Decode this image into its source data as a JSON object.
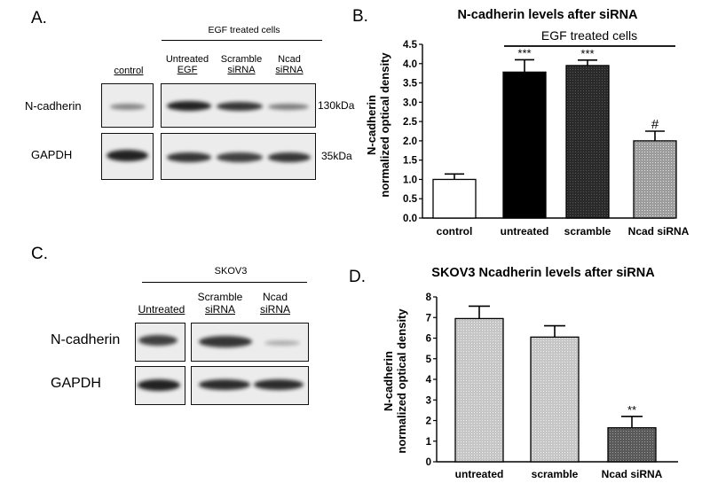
{
  "panelA": {
    "letter": "A.",
    "treatment_header": "EGF  treated cells",
    "lanes": [
      {
        "line1": "",
        "line2": "control"
      },
      {
        "line1": "Untreated",
        "line2": "EGF"
      },
      {
        "line1": "Scramble",
        "line2": "siRNA"
      },
      {
        "line1": "Ncad",
        "line2": "siRNA"
      }
    ],
    "rows": [
      {
        "label": "N-cadherin",
        "size": "130kDa",
        "band_intensity": [
          0.45,
          1.0,
          0.85,
          0.5
        ]
      },
      {
        "label": "GAPDH",
        "size": "35kDa",
        "band_intensity": [
          1.0,
          0.9,
          0.85,
          0.95
        ]
      }
    ]
  },
  "panelC": {
    "letter": "C.",
    "treatment_header": "SKOV3",
    "lanes": [
      {
        "line1": "",
        "line2": "Untreated"
      },
      {
        "line1": "Scramble",
        "line2": "siRNA"
      },
      {
        "line1": "Ncad",
        "line2": "siRNA"
      }
    ],
    "rows": [
      {
        "label": "N-cadherin",
        "band_intensity": [
          0.9,
          0.95,
          0.3
        ]
      },
      {
        "label": "GAPDH",
        "band_intensity": [
          1.0,
          0.95,
          0.95
        ]
      }
    ]
  },
  "chart_data": [
    {
      "panel": "B.",
      "type": "bar",
      "title": "N-cadherin levels after siRNA",
      "annotation": "EGF treated cells",
      "ylabel_line1": "N-cadherin",
      "ylabel_line2": "normalized optical density",
      "ylim": [
        0,
        4.5
      ],
      "yticks": [
        "0.0",
        "0.5",
        "1.0",
        "1.5",
        "2.0",
        "2.5",
        "3.0",
        "3.5",
        "4.0",
        "4.5"
      ],
      "categories": [
        "control",
        "untreated",
        "scramble",
        "Ncad  siRNA"
      ],
      "values": [
        1.0,
        3.78,
        3.95,
        2.0
      ],
      "errors": [
        0.14,
        0.32,
        0.14,
        0.25
      ],
      "significance": [
        "",
        "***",
        "***",
        "#"
      ],
      "fills": [
        "#ffffff",
        "#000000",
        "#2a2a2a",
        "#a8a8a8"
      ]
    },
    {
      "panel": "D.",
      "type": "bar",
      "title": "SKOV3 Ncadherin levels after siRNA",
      "ylabel_line1": "N-cadherin",
      "ylabel_line2": "normalized optical density",
      "ylim": [
        0,
        8
      ],
      "yticks": [
        "0",
        "1",
        "2",
        "3",
        "4",
        "5",
        "6",
        "7",
        "8"
      ],
      "categories": [
        "untreated",
        "scramble",
        "Ncad siRNA"
      ],
      "values": [
        6.95,
        6.05,
        1.65
      ],
      "errors": [
        0.6,
        0.55,
        0.55
      ],
      "significance": [
        "",
        "",
        "**"
      ],
      "fills": [
        "#d6d6d6",
        "#c8c8c8",
        "#6a6a6a"
      ]
    }
  ]
}
